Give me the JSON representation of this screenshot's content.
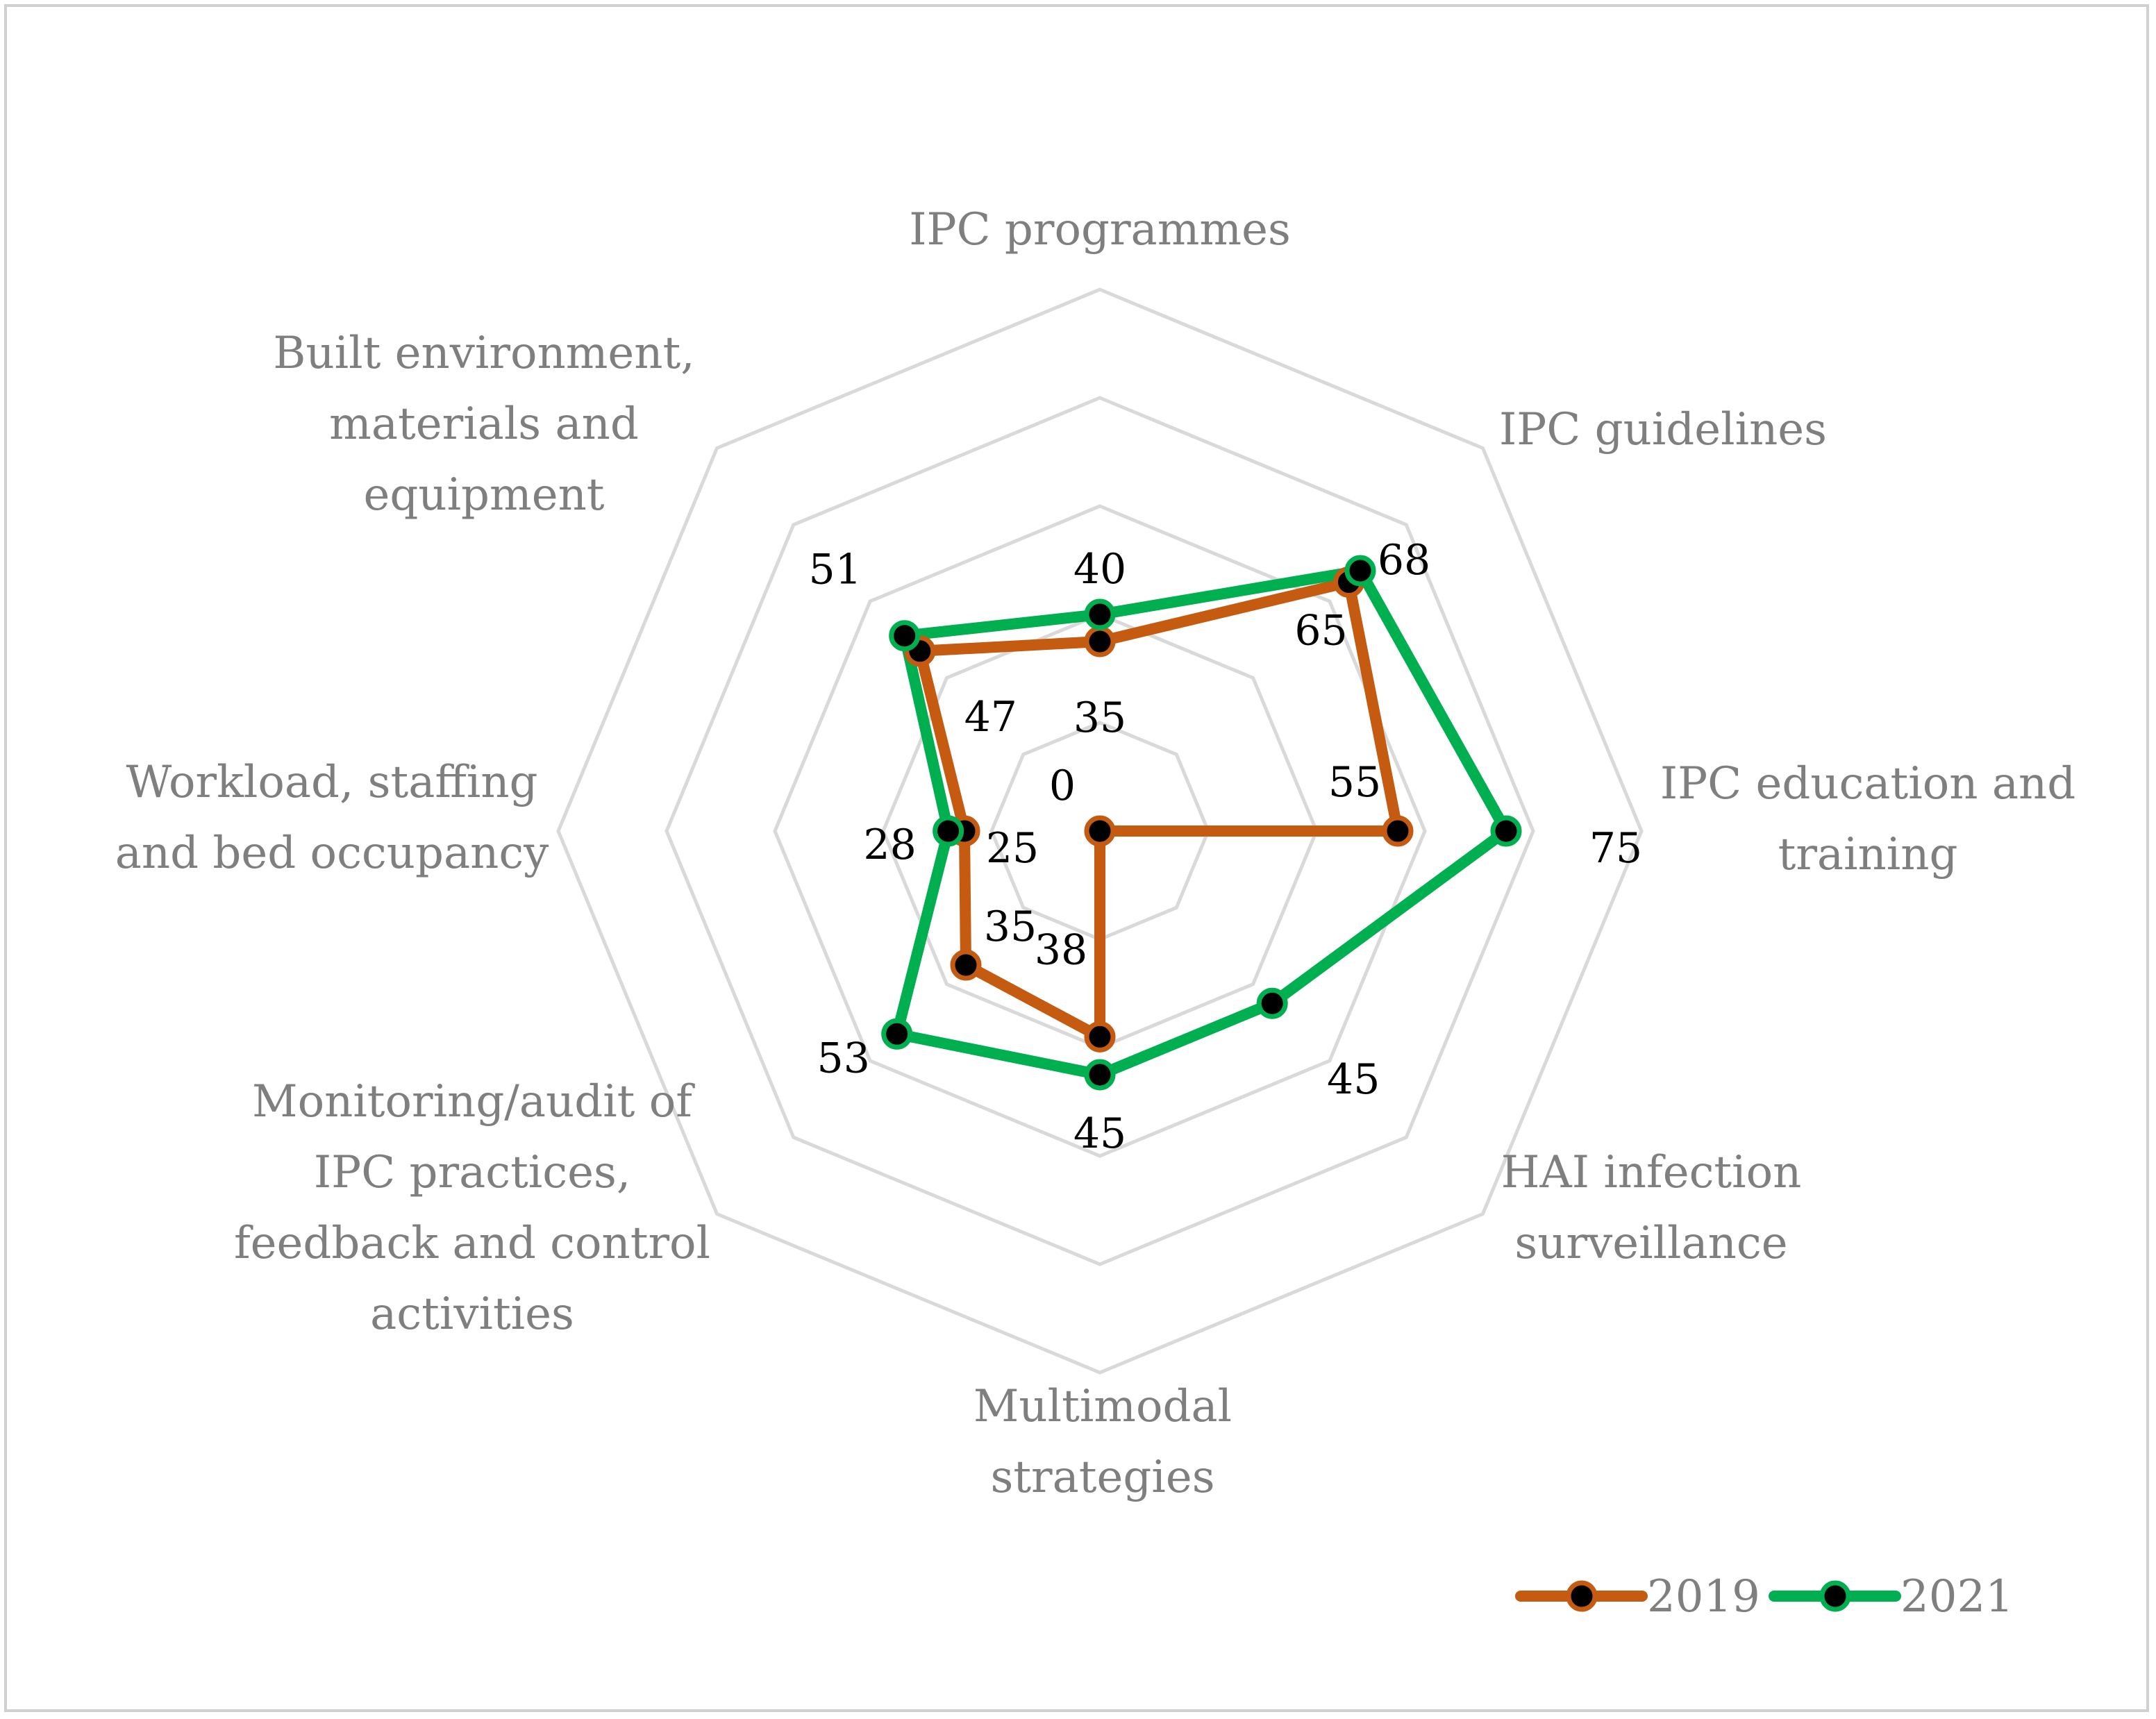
{
  "chart_data": {
    "type": "radar",
    "categories": [
      "IPC programmes",
      "IPC guidelines",
      "IPC education and training",
      "HAI infection surveillance",
      "Multimodal strategies",
      "Monitoring/audit of IPC practices, feedback and control activities",
      "Workload, staffing and bed occupancy",
      "Built environment, materials and equipment"
    ],
    "category_lines": [
      [
        "IPC programmes"
      ],
      [
        "IPC guidelines"
      ],
      [
        "IPC education and",
        "training"
      ],
      [
        "HAI infection",
        "surveillance"
      ],
      [
        "Multimodal",
        "strategies"
      ],
      [
        "Monitoring/audit of",
        "IPC practices,",
        "feedback and control",
        "activities"
      ],
      [
        "Workload, staffing",
        "and bed occupancy"
      ],
      [
        "Built environment,",
        "materials and",
        "equipment"
      ]
    ],
    "series": [
      {
        "name": "2019",
        "color": "#c55a11",
        "values": [
          35,
          65,
          55,
          0,
          38,
          35,
          25,
          47
        ],
        "labels": [
          "35",
          "65",
          "55",
          "0",
          "38",
          "35",
          "25",
          "47"
        ]
      },
      {
        "name": "2021",
        "color": "#00b050",
        "values": [
          40,
          68,
          75,
          45,
          45,
          53,
          28,
          51
        ],
        "labels": [
          "40",
          "68",
          "75",
          "45",
          "45",
          "53",
          "28",
          "51"
        ]
      }
    ],
    "rlim": [
      0,
      100
    ],
    "ring_step": 20,
    "grid": true,
    "grid_color": "#d9d9d9",
    "legend_position": "bottom-right"
  }
}
